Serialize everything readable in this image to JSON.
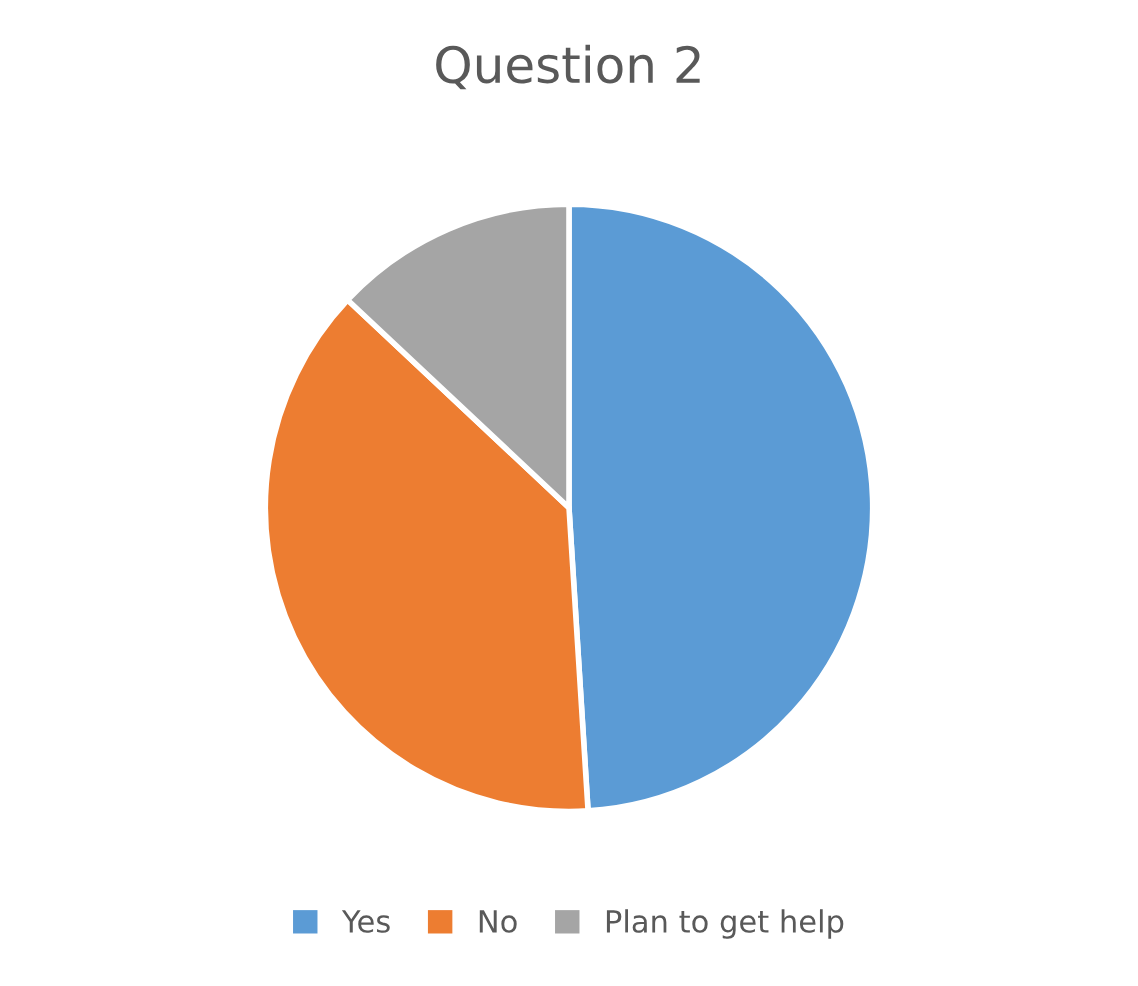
{
  "chart_data": {
    "type": "pie",
    "title": "Question 2",
    "categories": [
      "Yes",
      "No",
      "Plan to get help"
    ],
    "values": [
      49,
      38,
      13
    ],
    "colors": [
      "#5b9bd5",
      "#ed7d31",
      "#a5a5a5"
    ],
    "legend": "bottom"
  }
}
